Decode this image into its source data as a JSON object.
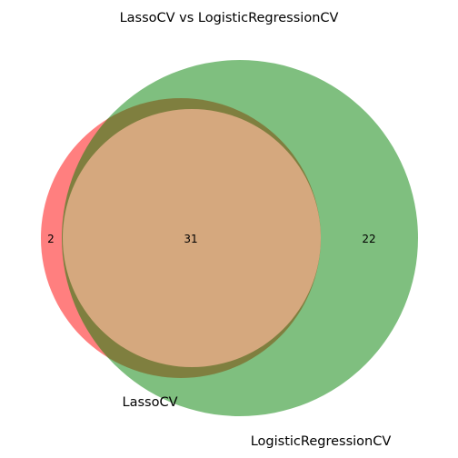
{
  "chart_data": {
    "type": "venn",
    "title": "LassoCV vs LogisticRegressionCV",
    "sets": [
      {
        "name": "LassoCV",
        "color": "#ff0000",
        "size": 33
      },
      {
        "name": "LogisticRegressionCV",
        "color": "#008000",
        "size": 53
      }
    ],
    "overlap_color": "#d5a87e",
    "regions": {
      "only_LassoCV": "2",
      "both": "31",
      "only_LogisticRegressionCV": "22"
    }
  }
}
